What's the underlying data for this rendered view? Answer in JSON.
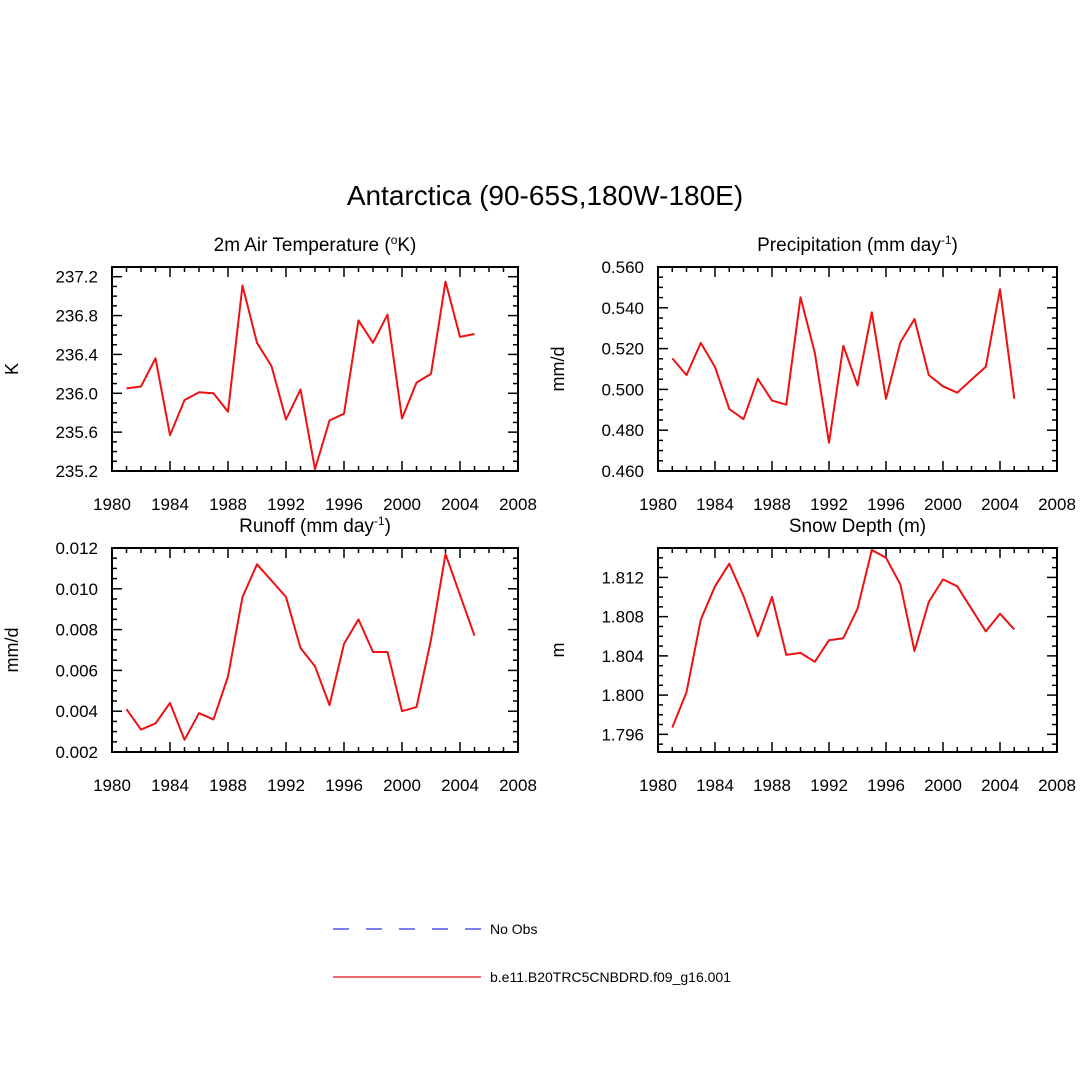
{
  "title": "Antarctica (90-65S,180W-180E)",
  "chart_data": [
    {
      "type": "line",
      "title_main": "2m Air Temperature (",
      "title_sup": "o",
      "title_end": "K)",
      "ylabel": "K",
      "xlim": [
        1980,
        2008
      ],
      "ylim": [
        235.2,
        237.3
      ],
      "yticks": [
        "235.2",
        "235.6",
        "236.0",
        "236.4",
        "236.8",
        "237.2"
      ],
      "xticks": [
        "1980",
        "1984",
        "1988",
        "1992",
        "1996",
        "2000",
        "2004",
        "2008"
      ],
      "x": [
        1981,
        1982,
        1983,
        1984,
        1985,
        1986,
        1987,
        1988,
        1989,
        1990,
        1991,
        1992,
        1993,
        1994,
        1995,
        1996,
        1997,
        1998,
        1999,
        2000,
        2001,
        2002,
        2003,
        2004,
        2005
      ],
      "series": [
        {
          "color": "#ee1111",
          "values": [
            236.05,
            236.07,
            236.36,
            235.57,
            235.93,
            236.01,
            236.0,
            235.81,
            237.11,
            236.52,
            236.28,
            235.73,
            236.04,
            235.22,
            235.72,
            235.79,
            236.75,
            236.52,
            236.81,
            235.74,
            236.11,
            236.2,
            237.15,
            236.58,
            236.61
          ]
        }
      ]
    },
    {
      "type": "line",
      "title_main": "Precipitation (mm day",
      "title_sup": "-1",
      "title_end": ")",
      "ylabel": "mm/d",
      "xlim": [
        1980,
        2008
      ],
      "ylim": [
        0.46,
        0.56
      ],
      "yticks": [
        "0.460",
        "0.480",
        "0.500",
        "0.520",
        "0.540",
        "0.560"
      ],
      "xticks": [
        "1980",
        "1984",
        "1988",
        "1992",
        "1996",
        "2000",
        "2004",
        "2008"
      ],
      "x": [
        1981,
        1982,
        1983,
        1984,
        1985,
        1986,
        1987,
        1988,
        1989,
        1990,
        1991,
        1992,
        1993,
        1994,
        1995,
        1996,
        1997,
        1998,
        1999,
        2000,
        2001,
        2002,
        2003,
        2004,
        2005
      ],
      "series": [
        {
          "color": "#ee1111",
          "values": [
            0.5152,
            0.507,
            0.5228,
            0.511,
            0.4904,
            0.4854,
            0.5052,
            0.4945,
            0.4925,
            0.5452,
            0.518,
            0.4738,
            0.5213,
            0.502,
            0.5378,
            0.4954,
            0.523,
            0.5345,
            0.507,
            0.5015,
            0.4984,
            0.5048,
            0.5111,
            0.5491,
            0.4954
          ]
        }
      ]
    },
    {
      "type": "line",
      "title_main": "Runoff (mm day",
      "title_sup": "-1",
      "title_end": ")",
      "ylabel": "mm/d",
      "xlim": [
        1980,
        2008
      ],
      "ylim": [
        0.002,
        0.012
      ],
      "yticks": [
        "0.002",
        "0.004",
        "0.006",
        "0.008",
        "0.010",
        "0.012"
      ],
      "xticks": [
        "1980",
        "1984",
        "1988",
        "1992",
        "1996",
        "2000",
        "2004",
        "2008"
      ],
      "x": [
        1981,
        1982,
        1983,
        1984,
        1985,
        1986,
        1987,
        1988,
        1989,
        1990,
        1991,
        1992,
        1993,
        1994,
        1995,
        1996,
        1997,
        1998,
        1999,
        2000,
        2001,
        2002,
        2003,
        2004,
        2005
      ],
      "series": [
        {
          "color": "#ee1111",
          "values": [
            0.0041,
            0.0031,
            0.0034,
            0.0044,
            0.0026,
            0.0039,
            0.0036,
            0.0057,
            0.0096,
            0.0112,
            0.0104,
            0.0096,
            0.0071,
            0.0062,
            0.0043,
            0.0073,
            0.0085,
            0.0069,
            0.0069,
            0.004,
            0.0042,
            0.0075,
            0.0117,
            0.0097,
            0.0077
          ]
        }
      ]
    },
    {
      "type": "line",
      "title_main": "Snow Depth (m)",
      "title_sup": "",
      "title_end": "",
      "ylabel": "m",
      "xlim": [
        1980,
        2008
      ],
      "ylim": [
        1.7942,
        1.815
      ],
      "yticks": [
        "1.796",
        "1.800",
        "1.804",
        "1.808",
        "1.812"
      ],
      "xticks": [
        "1980",
        "1984",
        "1988",
        "1992",
        "1996",
        "2000",
        "2004",
        "2008"
      ],
      "x": [
        1981,
        1982,
        1983,
        1984,
        1985,
        1986,
        1987,
        1988,
        1989,
        1990,
        1991,
        1992,
        1993,
        1994,
        1995,
        1996,
        1997,
        1998,
        1999,
        2000,
        2001,
        2002,
        2003,
        2004,
        2005
      ],
      "series": [
        {
          "color": "#ee1111",
          "values": [
            1.7967,
            1.8003,
            1.8077,
            1.8111,
            1.8134,
            1.8101,
            1.806,
            1.81,
            1.8041,
            1.8043,
            1.8034,
            1.8056,
            1.8058,
            1.8088,
            1.8148,
            1.814,
            1.8113,
            1.8045,
            1.8095,
            1.8118,
            1.8111,
            1.8088,
            1.8065,
            1.8083,
            1.8067
          ]
        }
      ]
    }
  ],
  "legend": [
    {
      "label": "No Obs",
      "style": "dashed",
      "color": "#3333ee"
    },
    {
      "label": "b.e11.B20TRC5CNBDRD.f09_g16.001",
      "style": "solid",
      "color": "#ee1111"
    }
  ]
}
